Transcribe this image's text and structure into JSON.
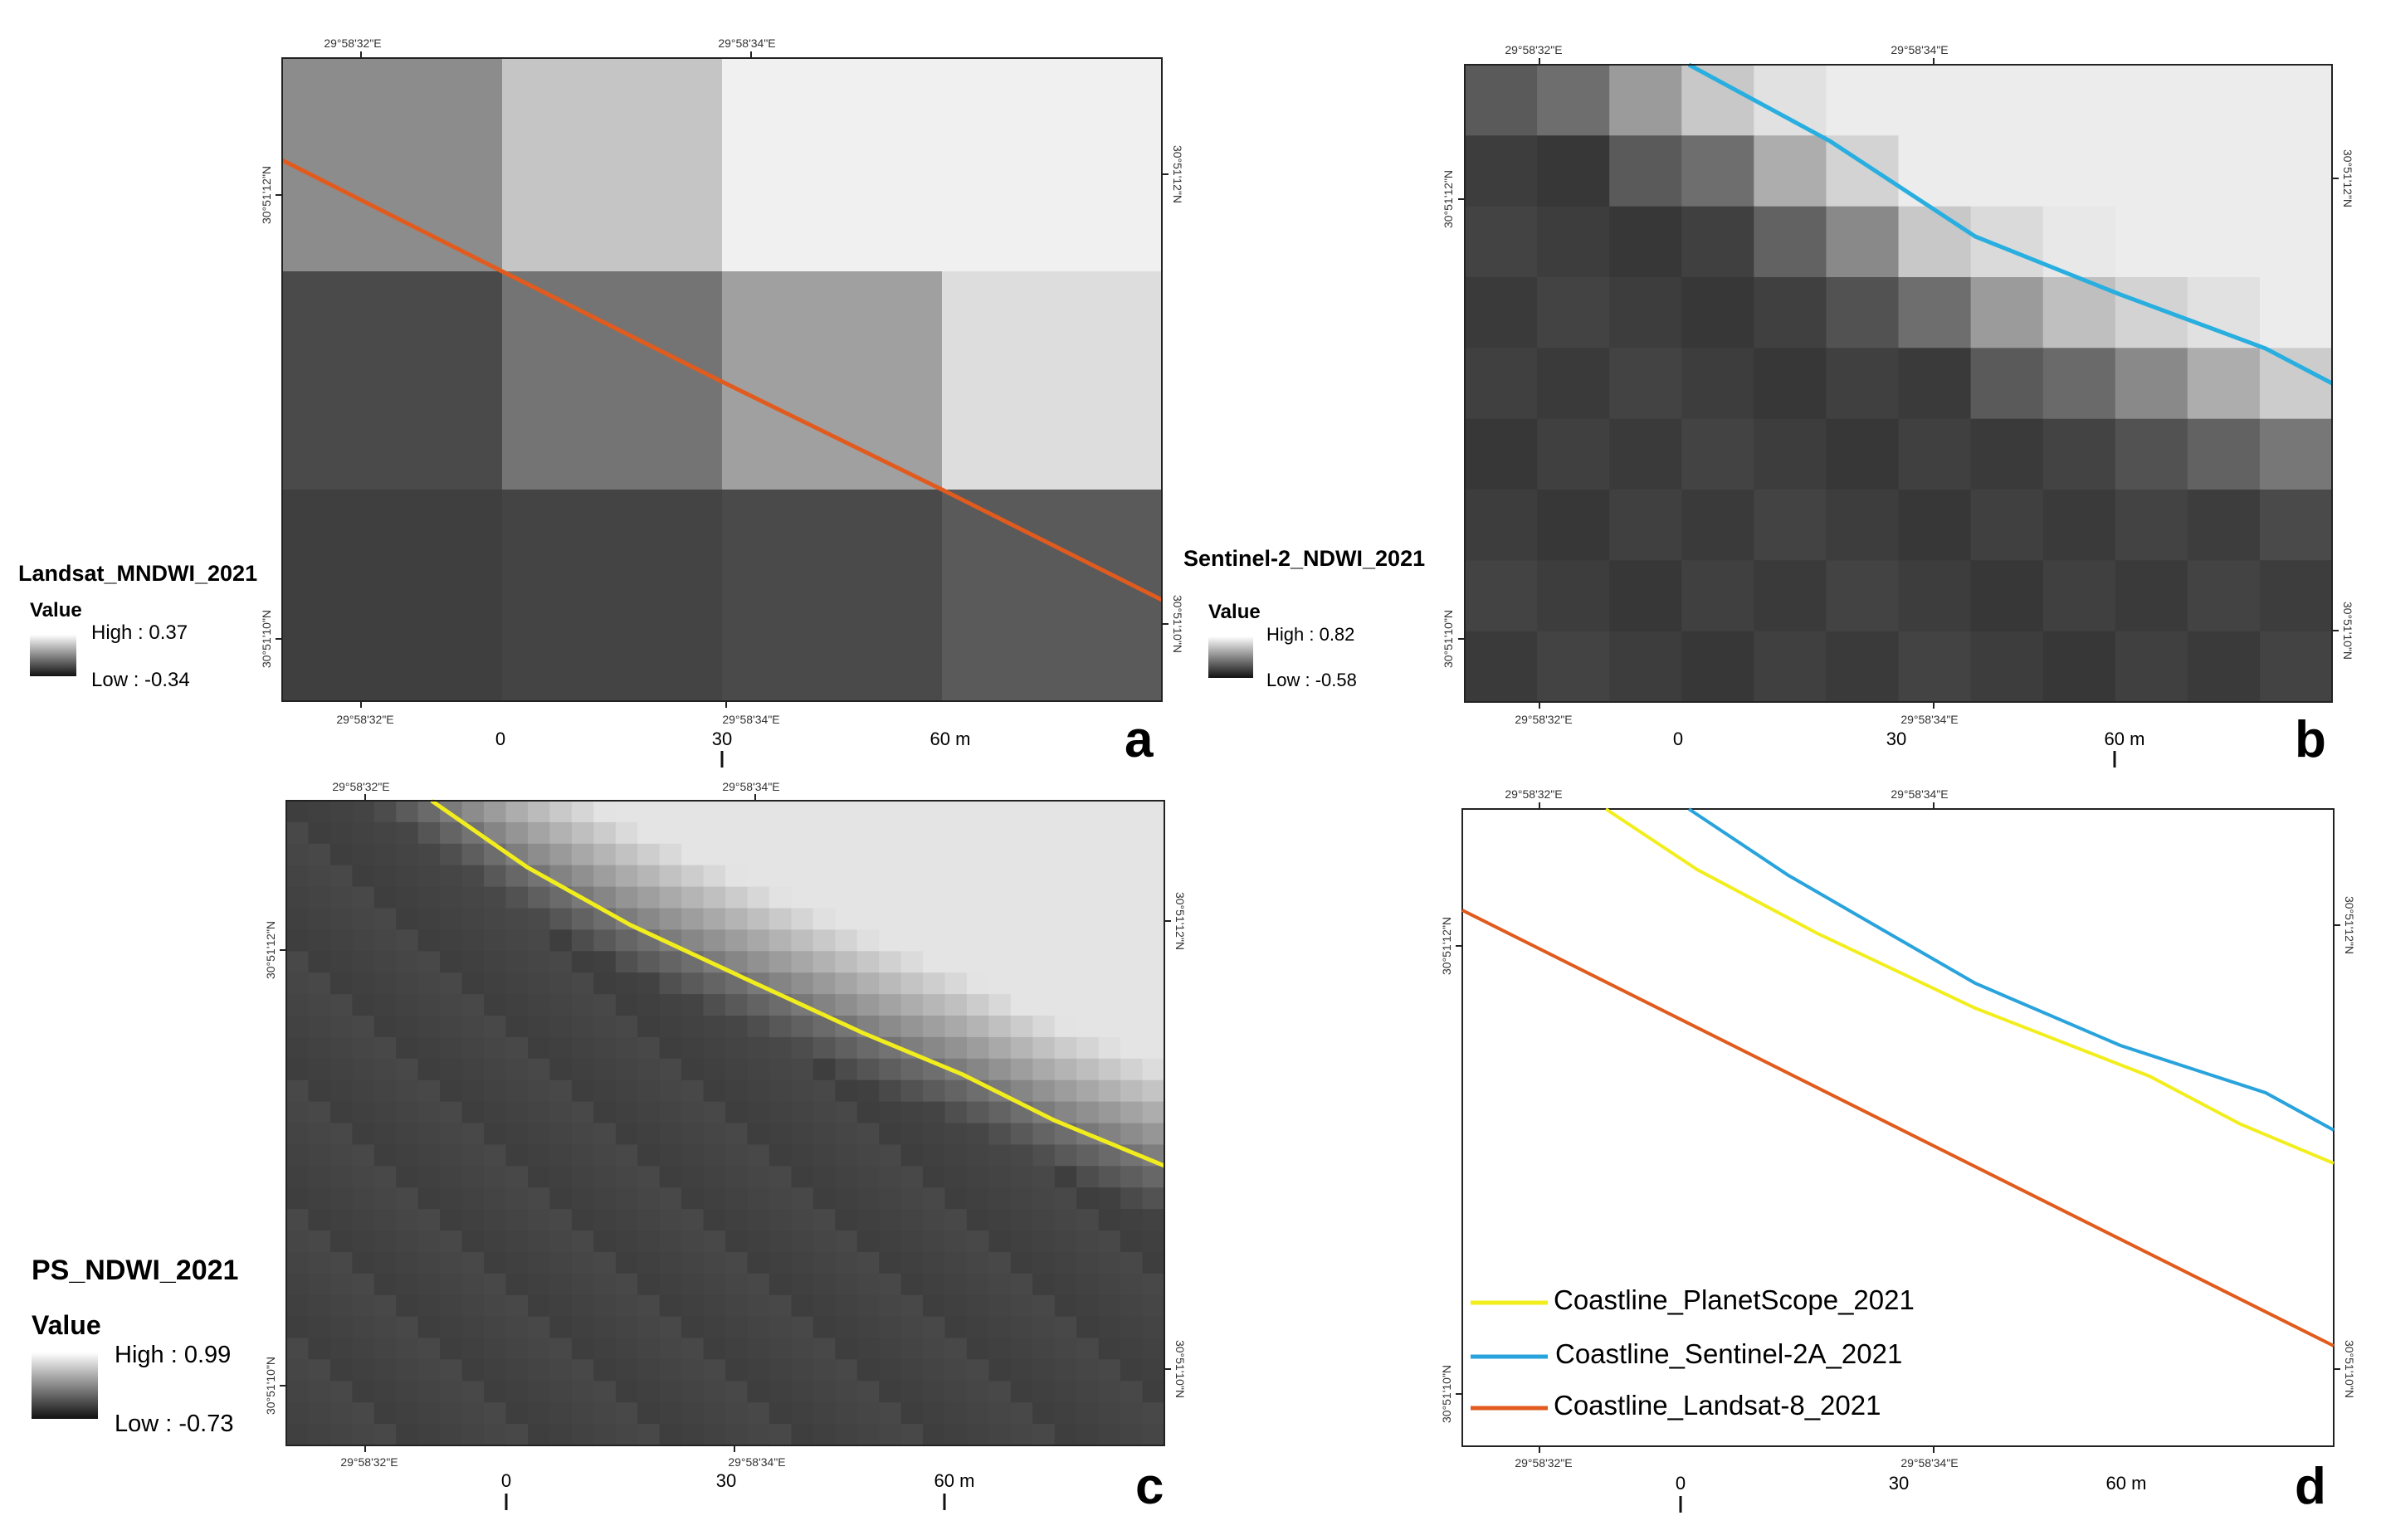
{
  "panels": {
    "a": {
      "letter": "a",
      "legend_title": "Landsat_MNDWI_2021",
      "value_label": "Value",
      "high_label": "High : 0.37",
      "low_label": "Low : -0.34",
      "lon_tick_1": "29°58'32\"E",
      "lon_tick_2": "29°58'34\"E",
      "lat_tick_1": "30°51'12\"N",
      "lat_tick_2": "30°51'10\"N",
      "scale": [
        "0",
        "30",
        "60 m"
      ],
      "line_color": "#e15b1f"
    },
    "b": {
      "letter": "b",
      "legend_title": "Sentinel-2_NDWI_2021",
      "value_label": "Value",
      "high_label": "High : 0.82",
      "low_label": "Low : -0.58",
      "lon_tick_1": "29°58'32\"E",
      "lon_tick_2": "29°58'34\"E",
      "lat_tick_1": "30°51'12\"N",
      "lat_tick_2": "30°51'10\"N",
      "scale": [
        "0",
        "30",
        "60 m"
      ],
      "line_color": "#29aee0"
    },
    "c": {
      "letter": "c",
      "legend_title": "PS_NDWI_2021",
      "value_label": "Value",
      "high_label": "High : 0.99",
      "low_label": "Low : -0.73",
      "lon_tick_1": "29°58'32\"E",
      "lon_tick_2": "29°58'34\"E",
      "lat_tick_1": "30°51'12\"N",
      "lat_tick_2": "30°51'10\"N",
      "scale": [
        "0",
        "30",
        "60 m"
      ],
      "line_color": "#f2ee1e"
    },
    "d": {
      "letter": "d",
      "lon_tick_1": "29°58'32\"E",
      "lon_tick_2": "29°58'34\"E",
      "lat_tick_1": "30°51'12\"N",
      "lat_tick_2": "30°51'10\"N",
      "scale": [
        "0",
        "30",
        "60 m"
      ],
      "legend": [
        {
          "label": "Coastline_PlanetScope_2021",
          "color": "#f2ee1e"
        },
        {
          "label": "Coastline_Sentinel-2A_2021",
          "color": "#29a3dc"
        },
        {
          "label": "Coastline_Landsat-8_2021",
          "color": "#e15b1f"
        }
      ]
    }
  }
}
